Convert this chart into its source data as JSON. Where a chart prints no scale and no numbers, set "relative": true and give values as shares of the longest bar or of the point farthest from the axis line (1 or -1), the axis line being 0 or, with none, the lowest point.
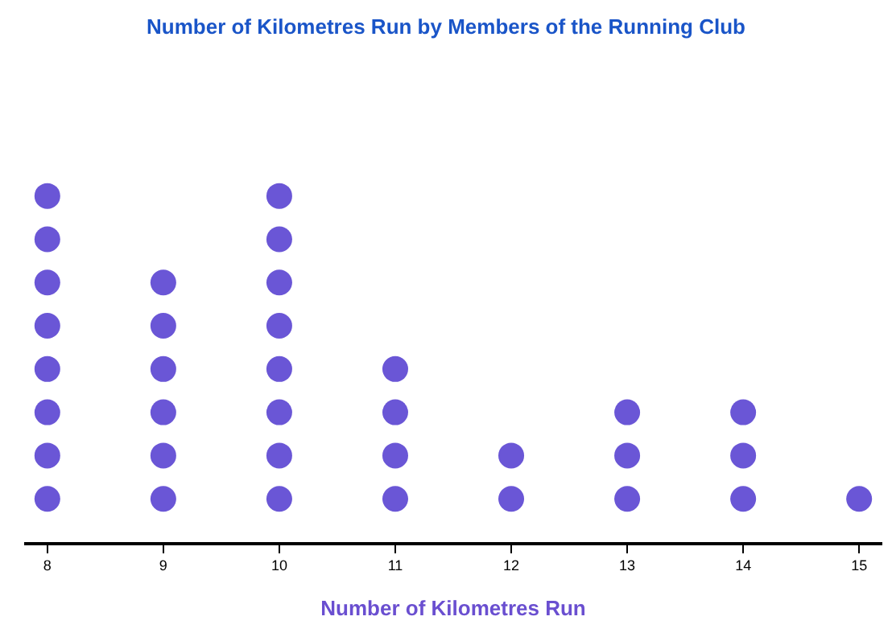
{
  "chart_data": {
    "type": "scatter",
    "title": "Number of Kilometres Run by Members of the Running Club",
    "xlabel": "Number of Kilometres Run",
    "x": [
      8,
      8,
      8,
      8,
      8,
      8,
      8,
      8,
      9,
      9,
      9,
      9,
      9,
      9,
      10,
      10,
      10,
      10,
      10,
      10,
      10,
      10,
      11,
      11,
      11,
      11,
      12,
      12,
      13,
      13,
      13,
      14,
      14,
      14,
      15
    ],
    "values": [
      0.125,
      0.25,
      0.375,
      0.5,
      0.625,
      0.75,
      0.875,
      1,
      0.125,
      0.25,
      0.375,
      0.5,
      0.625,
      0.75,
      0.125,
      0.25,
      0.375,
      0.5,
      0.625,
      0.75,
      0.875,
      1,
      0.125,
      0.25,
      0.375,
      0.5,
      0.125,
      0.25,
      0.125,
      0.25,
      0.375,
      0.125,
      0.25,
      0.375,
      0.125
    ],
    "relative": true,
    "color": "#6a56d6",
    "marker": "circle",
    "xlim": [
      7.8,
      15.2
    ],
    "xticks": [
      8,
      9,
      10,
      11,
      12,
      13,
      14,
      15
    ],
    "tick_labels": "x",
    "legend": false
  }
}
